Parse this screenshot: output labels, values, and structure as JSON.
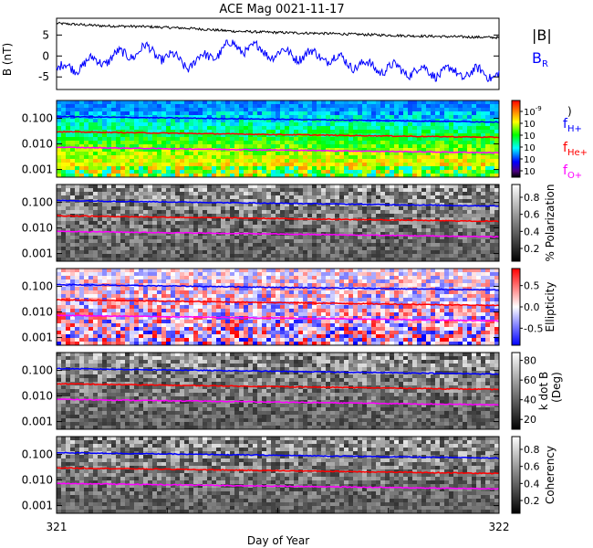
{
  "chart_data": [
    {
      "type": "line",
      "title": "ACE Mag 0021-11-17",
      "ylabel": "B (nT)",
      "ylim": [
        -8,
        9
      ],
      "yticks": [
        -5,
        0,
        5
      ],
      "x_range": [
        321,
        322
      ],
      "series": [
        {
          "name": "|B|",
          "color": "#000000",
          "x": [
            321.0,
            321.1,
            321.2,
            321.3,
            321.4,
            321.5,
            321.6,
            321.7,
            321.8,
            321.9,
            322.0
          ],
          "values": [
            7.8,
            7.2,
            7.0,
            6.6,
            5.9,
            5.6,
            5.4,
            5.1,
            4.8,
            4.6,
            4.4
          ]
        },
        {
          "name": "B",
          "subscript": "R",
          "color": "#0000ff",
          "x": [
            321.0,
            321.1,
            321.2,
            321.3,
            321.4,
            321.5,
            321.6,
            321.7,
            321.8,
            321.9,
            322.0
          ],
          "values": [
            -3.5,
            -1.0,
            1.5,
            -2.0,
            2.5,
            0.5,
            0.0,
            -2.5,
            -3.5,
            -4.0,
            -4.2
          ]
        }
      ]
    },
    {
      "type": "heatmap",
      "name": "power spectrum",
      "ytick_labels": [
        "0.100",
        "0.010",
        "0.001"
      ],
      "yticks": [
        0.1,
        0.01,
        0.001
      ],
      "ylim": [
        0.0005,
        0.5
      ],
      "yscale": "log",
      "colorbar": {
        "palette": "rainbow",
        "tick_labels": [
          "10",
          "10",
          "10",
          "10",
          "10",
          "10"
        ],
        "top_exponent": "-9",
        "other_exponents": [
          "",
          "",
          "",
          "",
          ""
        ],
        "extra_label": ")"
      },
      "gyro_lines": [
        {
          "name": "f",
          "subscript": "H+",
          "color": "#0000ff",
          "x": [
            321.0,
            322.0
          ],
          "values": [
            0.118,
            0.072
          ]
        },
        {
          "name": "f",
          "subscript": "He+",
          "color": "#ff0000",
          "x": [
            321.0,
            322.0
          ],
          "values": [
            0.03,
            0.018
          ]
        },
        {
          "name": "f",
          "subscript": "O+",
          "color": "#ff00ff",
          "x": [
            321.0,
            322.0
          ],
          "values": [
            0.0074,
            0.0045
          ]
        }
      ]
    },
    {
      "type": "heatmap",
      "name": "polarization",
      "ytick_labels": [
        "0.100",
        "0.010",
        "0.001"
      ],
      "colorbar": {
        "palette": "gray",
        "label": "% Polarization",
        "tick_labels": [
          "0.8",
          "0.6",
          "0.4",
          "0.2"
        ],
        "ticks": [
          0.8,
          0.6,
          0.4,
          0.2
        ],
        "range": [
          0.05,
          0.95
        ]
      }
    },
    {
      "type": "heatmap",
      "name": "ellipticity",
      "ytick_labels": [
        "0.100",
        "0.010",
        "0.001"
      ],
      "colorbar": {
        "palette": "bwr",
        "label": "Ellipticity",
        "tick_labels": [
          "0.5",
          "0.0",
          "-0.5"
        ],
        "ticks": [
          0.5,
          0.0,
          -0.5
        ],
        "range": [
          -0.9,
          0.9
        ]
      }
    },
    {
      "type": "heatmap",
      "name": "k dot B",
      "ytick_labels": [
        "0.100",
        "0.010",
        "0.001"
      ],
      "colorbar": {
        "palette": "gray",
        "label": "k dot B",
        "label2": "(Deg)",
        "tick_labels": [
          "80",
          "60",
          "40",
          "20"
        ],
        "ticks": [
          80,
          60,
          40,
          20
        ],
        "range": [
          10,
          88
        ]
      }
    },
    {
      "type": "heatmap",
      "name": "coherency",
      "ytick_labels": [
        "0.100",
        "0.010",
        "0.001"
      ],
      "colorbar": {
        "palette": "gray",
        "label": "Coherency",
        "tick_labels": [
          "0.8",
          "0.6",
          "0.4",
          "0.2"
        ],
        "ticks": [
          0.8,
          0.6,
          0.4,
          0.2
        ],
        "range": [
          0.05,
          0.95
        ]
      }
    }
  ],
  "x_axis": {
    "label": "Day of Year",
    "tick_labels": [
      "321",
      "322"
    ],
    "range": [
      321,
      322
    ]
  }
}
